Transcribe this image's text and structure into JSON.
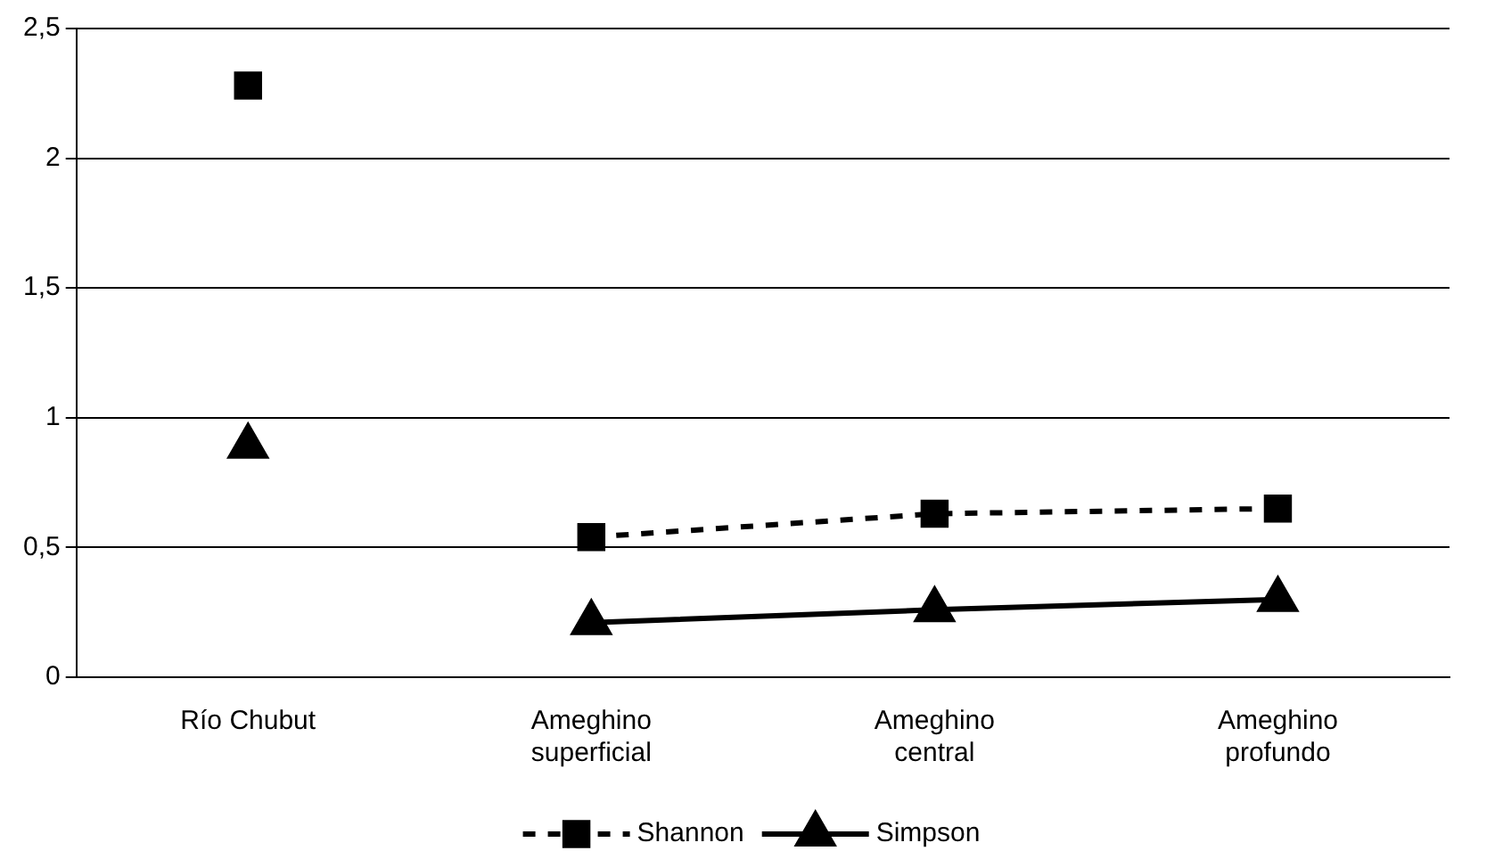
{
  "chart_data": {
    "type": "line",
    "categories": [
      "Río Chubut",
      "Ameghino superficial",
      "Ameghino central",
      "Ameghino profundo"
    ],
    "series": [
      {
        "name": "Shannon",
        "color": "#000000",
        "values": [
          null,
          0.54,
          0.63,
          0.65
        ],
        "marker": "square",
        "line_style": "dashed"
      },
      {
        "name": "Simpson",
        "color": "#000000",
        "values": [
          null,
          0.21,
          0.26,
          0.3
        ],
        "marker": "triangle",
        "line_style": "solid"
      },
      {
        "type": "scatter",
        "color": "#000000",
        "values": [
          2.28,
          null,
          null,
          null
        ],
        "marker": "square"
      },
      {
        "type": "scatter",
        "color": "#000000",
        "values": [
          0.89,
          null,
          null,
          null
        ],
        "marker": "triangle"
      }
    ],
    "ylim": [
      0,
      2.5
    ],
    "yticks": [
      {
        "value": 0,
        "label": "0"
      },
      {
        "value": 0.5,
        "label": "0,5"
      },
      {
        "value": 1,
        "label": "1"
      },
      {
        "value": 1.5,
        "label": "1,5"
      },
      {
        "value": 2,
        "label": "2"
      },
      {
        "value": 2.5,
        "label": "2,5"
      }
    ],
    "grid": "y",
    "legend": "bottom"
  }
}
